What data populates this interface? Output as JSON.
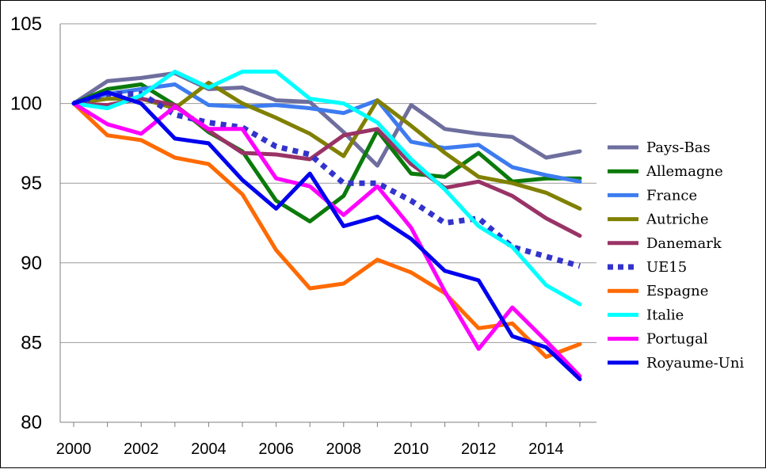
{
  "chart_data": {
    "type": "line",
    "title": "",
    "xlabel": "",
    "ylabel": "",
    "ylim": [
      80,
      105
    ],
    "xlim": [
      2000,
      2015
    ],
    "y_ticks": [
      "80",
      "85",
      "90",
      "95",
      "100",
      "105"
    ],
    "x_ticks": [
      "2000",
      "2002",
      "2004",
      "2006",
      "2008",
      "2010",
      "2012",
      "2014"
    ],
    "grid": "horizontal",
    "legend_position": "right",
    "x": [
      2000,
      2001,
      2002,
      2003,
      2004,
      2005,
      2006,
      2007,
      2008,
      2009,
      2010,
      2011,
      2012,
      2013,
      2014,
      2015
    ],
    "series": [
      {
        "name": "Pays-Bas",
        "color": "#6E6E9E",
        "dash": "solid",
        "values": [
          100,
          101.4,
          101.6,
          101.9,
          100.9,
          101.0,
          100.2,
          100.1,
          98.2,
          96.1,
          99.9,
          98.4,
          98.1,
          97.9,
          96.6,
          97.0
        ]
      },
      {
        "name": "Allemagne",
        "color": "#0B7A0B",
        "dash": "solid",
        "values": [
          100,
          100.9,
          101.2,
          99.9,
          98.2,
          97.0,
          93.9,
          92.6,
          94.2,
          98.3,
          95.6,
          95.4,
          96.9,
          95.1,
          95.3,
          95.3
        ]
      },
      {
        "name": "France",
        "color": "#3D7BF0",
        "dash": "solid",
        "values": [
          100,
          100.6,
          100.9,
          101.2,
          99.9,
          99.8,
          99.9,
          99.7,
          99.4,
          100.2,
          97.6,
          97.2,
          97.4,
          96.0,
          95.5,
          95.1
        ]
      },
      {
        "name": "Autriche",
        "color": "#808000",
        "dash": "solid",
        "values": [
          100,
          100.3,
          100.3,
          99.7,
          101.3,
          100.0,
          99.1,
          98.1,
          96.7,
          100.2,
          98.6,
          96.9,
          95.4,
          95.0,
          94.4,
          93.4
        ]
      },
      {
        "name": "Danemark",
        "color": "#993366",
        "dash": "solid",
        "values": [
          100,
          99.9,
          100.3,
          99.9,
          98.3,
          96.9,
          96.8,
          96.5,
          98.0,
          98.4,
          96.2,
          94.7,
          95.1,
          94.2,
          92.8,
          91.7
        ]
      },
      {
        "name": "UE15",
        "color": "#3333CC",
        "dash": "dotted",
        "values": [
          100,
          100.6,
          100.6,
          99.3,
          98.8,
          98.5,
          97.3,
          96.8,
          95.0,
          95.0,
          93.9,
          92.5,
          92.8,
          91.0,
          90.4,
          89.8
        ]
      },
      {
        "name": "Espagne",
        "color": "#FF6A00",
        "dash": "solid",
        "values": [
          100,
          98.0,
          97.7,
          96.6,
          96.2,
          94.3,
          90.8,
          88.4,
          88.7,
          90.2,
          89.4,
          88.1,
          85.9,
          86.2,
          84.1,
          84.9
        ]
      },
      {
        "name": "Italie",
        "color": "#00FFFF",
        "dash": "solid",
        "values": [
          100,
          99.7,
          100.5,
          102.0,
          101.0,
          102.0,
          102.0,
          100.3,
          100.0,
          98.8,
          96.5,
          94.6,
          92.3,
          91.0,
          88.6,
          87.4
        ]
      },
      {
        "name": "Portugal",
        "color": "#FF00FF",
        "dash": "solid",
        "values": [
          100,
          98.7,
          98.1,
          99.8,
          98.4,
          98.4,
          95.3,
          94.8,
          93.0,
          94.8,
          92.2,
          88.2,
          84.6,
          87.2,
          85.1,
          82.9
        ]
      },
      {
        "name": "Royaume-Uni",
        "color": "#0000EE",
        "dash": "solid",
        "values": [
          100,
          100.7,
          100.0,
          97.8,
          97.5,
          95.2,
          93.4,
          95.6,
          92.3,
          92.9,
          91.5,
          89.5,
          88.9,
          85.4,
          84.7,
          82.7
        ]
      }
    ]
  }
}
